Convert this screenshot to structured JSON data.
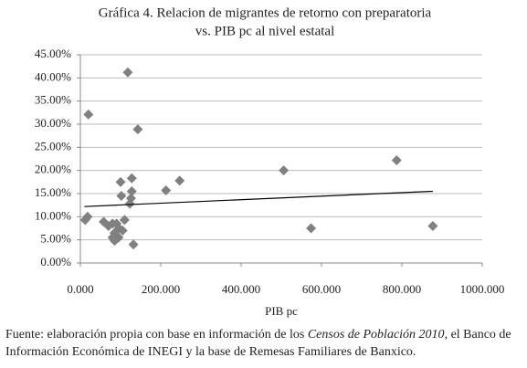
{
  "chart_data": {
    "type": "scatter",
    "title": [
      "Gráfica 4. Relacion de migrantes de retorno con preparatoria",
      "vs. PIB pc al nivel estatal"
    ],
    "x_label": "PIB pc",
    "color": "#808080",
    "x": [
      118000,
      20000,
      143000,
      128000,
      100000,
      128000,
      102000,
      126000,
      123000,
      12000,
      18000,
      58000,
      90000,
      110000,
      80000,
      96000,
      85000,
      80000,
      90000,
      85000,
      95000,
      105000,
      132000,
      213000,
      247000,
      506000,
      574000,
      787000,
      877000,
      70000
    ],
    "values": [
      41.2,
      32.1,
      28.9,
      18.3,
      17.5,
      15.5,
      14.5,
      14.0,
      12.8,
      9.3,
      10.0,
      8.9,
      8.5,
      9.3,
      8.5,
      7.5,
      6.5,
      5.5,
      5.2,
      4.8,
      5.5,
      7.0,
      4.0,
      15.7,
      17.8,
      20.0,
      7.5,
      22.2,
      8.0,
      8.0
    ],
    "trendline": {
      "color": "#000000",
      "x": [
        10000,
        877000
      ],
      "values": [
        12.2,
        15.5
      ]
    },
    "xlim": [
      0,
      1000000
    ],
    "xticks": [
      {
        "value": 0,
        "label": "0.000"
      },
      {
        "value": 200000,
        "label": "200.000"
      },
      {
        "value": 400000,
        "label": "400.000"
      },
      {
        "value": 600000,
        "label": "600.000"
      },
      {
        "value": 800000,
        "label": "800.000"
      },
      {
        "value": 1000000,
        "label": "1000.000"
      }
    ],
    "ylim": [
      0,
      45
    ],
    "yticks": [
      {
        "value": 0,
        "label": "0.00%"
      },
      {
        "value": 5,
        "label": "5.00%"
      },
      {
        "value": 10,
        "label": "10.00%"
      },
      {
        "value": 15,
        "label": "15.00%"
      },
      {
        "value": 20,
        "label": "20.00%"
      },
      {
        "value": 25,
        "label": "25.00%"
      },
      {
        "value": 30,
        "label": "30.00%"
      },
      {
        "value": 35,
        "label": "35.00%"
      },
      {
        "value": 40,
        "label": "40.00%"
      },
      {
        "value": 45,
        "label": "45.00%"
      }
    ],
    "grid": true
  },
  "footnote": [
    "Fuente: elaboración propia con base en información de los ",
    "Censos de Población 2010",
    ", el Banco de Información Económica de ",
    "INEGI",
    " y la base de Remesas Familiares de Banxico."
  ]
}
